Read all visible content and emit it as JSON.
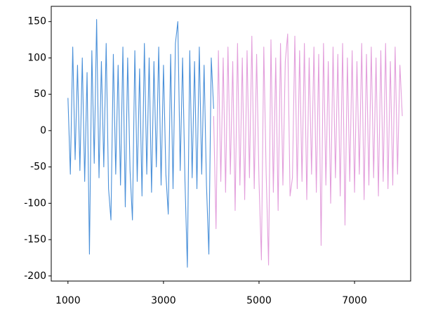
{
  "chart_data": {
    "type": "line",
    "xlim": [
      650,
      8175
    ],
    "ylim": [
      -207,
      171
    ],
    "xticks": [
      1000,
      3000,
      5000,
      7000
    ],
    "yticks": [
      -200,
      -150,
      -100,
      -50,
      0,
      50,
      100,
      150
    ],
    "grid": false,
    "series": [
      {
        "color": "#4a90d9",
        "x": [
          1000,
          1050,
          1100,
          1150,
          1200,
          1250,
          1300,
          1350,
          1400,
          1450,
          1500,
          1550,
          1600,
          1650,
          1700,
          1750,
          1800,
          1850,
          1900,
          1950,
          2000,
          2050,
          2100,
          2150,
          2200,
          2250,
          2300,
          2350,
          2400,
          2450,
          2500,
          2550,
          2600,
          2650,
          2700,
          2750,
          2800,
          2850,
          2900,
          2950,
          3000,
          3050,
          3100,
          3150,
          3200,
          3250,
          3300,
          3350,
          3400,
          3450,
          3500,
          3550,
          3600,
          3650,
          3700,
          3750,
          3800,
          3850,
          3900,
          3950,
          4000,
          4050
        ],
        "values": [
          45,
          -60,
          115,
          -40,
          90,
          -55,
          100,
          -70,
          80,
          -170,
          110,
          -45,
          153,
          -65,
          95,
          -50,
          120,
          -80,
          -123,
          105,
          -60,
          90,
          -75,
          115,
          -105,
          100,
          -55,
          -123,
          110,
          -70,
          85,
          -90,
          120,
          -60,
          100,
          -85,
          95,
          -50,
          115,
          -75,
          90,
          -60,
          -115,
          105,
          -80,
          120,
          150,
          -55,
          100,
          -70,
          -188,
          110,
          -65,
          95,
          -80,
          115,
          -60,
          90,
          -75,
          -170,
          100,
          30
        ]
      },
      {
        "color": "#e39fdc",
        "x": [
          4050,
          4100,
          4150,
          4200,
          4250,
          4300,
          4350,
          4400,
          4450,
          4500,
          4550,
          4600,
          4650,
          4700,
          4750,
          4800,
          4850,
          4900,
          4950,
          5000,
          5050,
          5100,
          5150,
          5200,
          5250,
          5300,
          5350,
          5400,
          5450,
          5500,
          5550,
          5600,
          5650,
          5700,
          5750,
          5800,
          5850,
          5900,
          5950,
          6000,
          6050,
          6100,
          6150,
          6200,
          6250,
          6300,
          6350,
          6400,
          6450,
          6500,
          6550,
          6600,
          6650,
          6700,
          6750,
          6800,
          6850,
          6900,
          6950,
          7000,
          7050,
          7100,
          7150,
          7200,
          7250,
          7300,
          7350,
          7400,
          7450,
          7500,
          7550,
          7600,
          7650,
          7700,
          7750,
          7800,
          7850,
          7900,
          7950,
          8000
        ],
        "values": [
          20,
          -135,
          110,
          -70,
          100,
          -85,
          115,
          -60,
          95,
          -110,
          120,
          -75,
          100,
          -95,
          110,
          -65,
          130,
          -80,
          105,
          -70,
          -178,
          115,
          -60,
          -185,
          125,
          -85,
          100,
          -110,
          120,
          -75,
          95,
          133,
          -90,
          -65,
          130,
          -80,
          110,
          -70,
          120,
          -95,
          100,
          -60,
          115,
          -85,
          105,
          -158,
          120,
          -75,
          95,
          -100,
          115,
          -65,
          105,
          -90,
          120,
          -130,
          100,
          -70,
          110,
          -85,
          95,
          -60,
          120,
          -95,
          105,
          -75,
          115,
          -65,
          100,
          -90,
          110,
          -70,
          120,
          -80,
          95,
          -75,
          115,
          -60,
          90,
          20
        ]
      }
    ]
  }
}
